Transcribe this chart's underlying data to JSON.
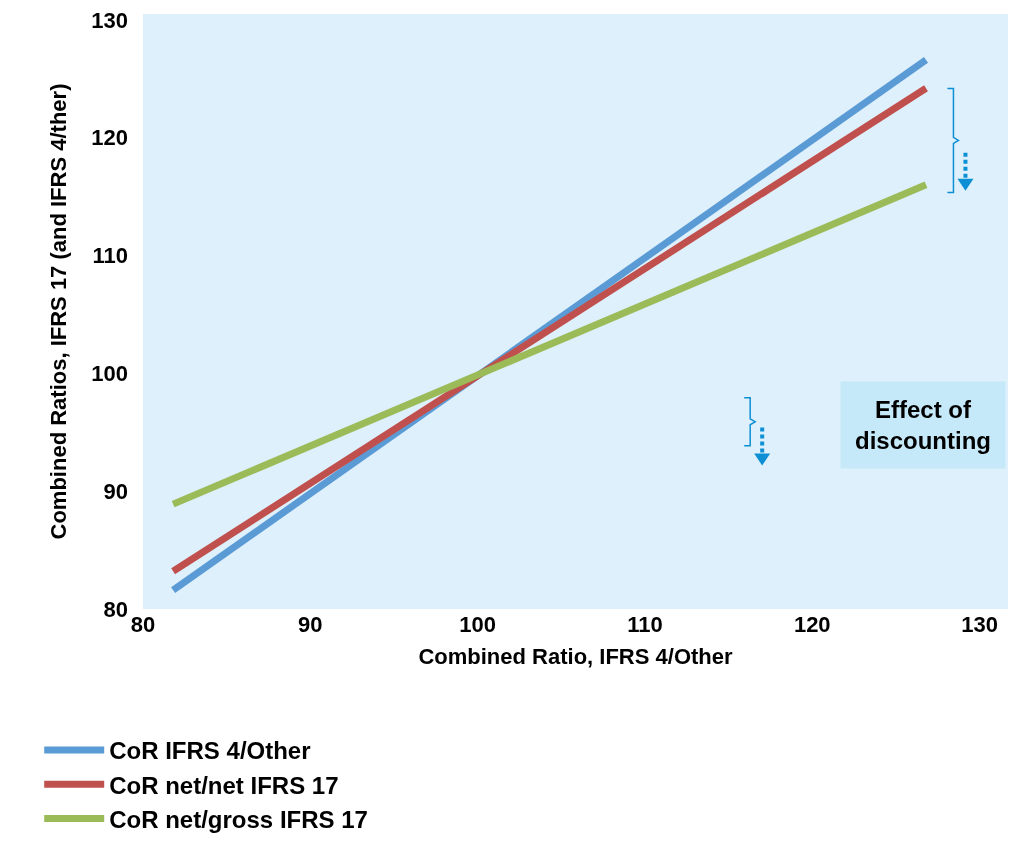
{
  "chart_data": {
    "type": "line",
    "xlabel": "Combined Ratio, IFRS 4/Other",
    "ylabel": "Combined Ratios, IFRS 17 (and IFRS 4/ther)",
    "x": [
      81.8,
      126.8
    ],
    "series": [
      {
        "name": "CoR IFRS 4/Other",
        "color": "#5b9bd5",
        "values": [
          81.6,
          126.6
        ]
      },
      {
        "name": "CoR net/net IFRS 17",
        "color": "#c0504d",
        "values": [
          83.2,
          124.2
        ]
      },
      {
        "name": "CoR net/gross IFRS 17",
        "color": "#9bbb59",
        "values": [
          88.9,
          116.0
        ]
      }
    ],
    "xlim": [
      80,
      131.7
    ],
    "ylim": [
      80,
      130.5
    ],
    "xticks": [
      80,
      90,
      100,
      110,
      120,
      130
    ],
    "yticks": [
      80,
      90,
      100,
      110,
      120,
      130
    ],
    "grid": false,
    "legend": "bottom",
    "marker": "none",
    "line_style": "solid",
    "annotations": [
      "Effect of discounting"
    ]
  }
}
